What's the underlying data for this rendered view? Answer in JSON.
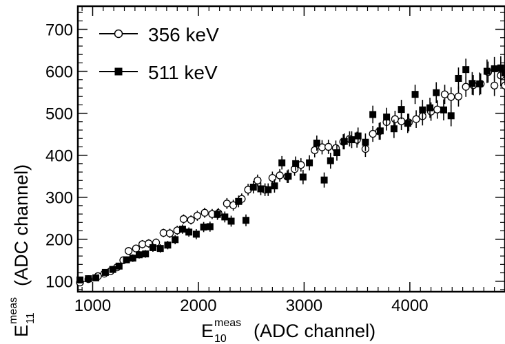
{
  "chart_data": {
    "type": "scatter",
    "xlabel": {
      "main": "E",
      "sup": "meas",
      "sub": "10",
      "rest": "(ADC channel)"
    },
    "ylabel": {
      "main": "E",
      "sup": "meas",
      "sub": "11",
      "rest": "(ADC channel)"
    },
    "xlim": [
      860,
      4900
    ],
    "ylim": [
      75,
      755
    ],
    "x_ticks": [
      1000,
      2000,
      3000,
      4000
    ],
    "x_tick_labels": [
      "1000",
      "2000",
      "3000",
      "4000"
    ],
    "y_ticks": [
      100,
      200,
      300,
      400,
      500,
      600,
      700
    ],
    "y_tick_labels": [
      "100",
      "200",
      "300",
      "400",
      "500",
      "600",
      "700"
    ],
    "grid": false,
    "legend_position": "top-left",
    "series": [
      {
        "name": "356 keV",
        "marker": "open-circle",
        "color": "#000000",
        "points": [
          [
            880,
            97,
            8
          ],
          [
            960,
            105,
            7
          ],
          [
            1050,
            112,
            8
          ],
          [
            1110,
            118,
            7
          ],
          [
            1170,
            124,
            8
          ],
          [
            1230,
            133,
            8
          ],
          [
            1290,
            150,
            8
          ],
          [
            1340,
            172,
            9
          ],
          [
            1410,
            178,
            9
          ],
          [
            1470,
            188,
            10
          ],
          [
            1530,
            190,
            10
          ],
          [
            1600,
            192,
            10
          ],
          [
            1670,
            215,
            10
          ],
          [
            1730,
            214,
            11
          ],
          [
            1800,
            221,
            11
          ],
          [
            1860,
            248,
            11
          ],
          [
            1930,
            246,
            11
          ],
          [
            1990,
            256,
            12
          ],
          [
            2060,
            263,
            12
          ],
          [
            2130,
            260,
            12
          ],
          [
            2190,
            262,
            12
          ],
          [
            2270,
            285,
            13
          ],
          [
            2330,
            281,
            13
          ],
          [
            2410,
            296,
            13
          ],
          [
            2470,
            318,
            14
          ],
          [
            2560,
            340,
            14
          ],
          [
            2630,
            318,
            15
          ],
          [
            2700,
            346,
            15
          ],
          [
            2770,
            352,
            15
          ],
          [
            2840,
            349,
            15
          ],
          [
            2910,
            367,
            16
          ],
          [
            2970,
            377,
            16
          ],
          [
            3100,
            412,
            17
          ],
          [
            3170,
            419,
            17
          ],
          [
            3230,
            420,
            17
          ],
          [
            3300,
            417,
            18
          ],
          [
            3370,
            432,
            18
          ],
          [
            3430,
            439,
            18
          ],
          [
            3500,
            437,
            19
          ],
          [
            3580,
            415,
            19
          ],
          [
            3650,
            451,
            19
          ],
          [
            3710,
            457,
            20
          ],
          [
            3780,
            479,
            20
          ],
          [
            3860,
            486,
            20
          ],
          [
            3920,
            481,
            21
          ],
          [
            3990,
            478,
            21
          ],
          [
            4060,
            486,
            21
          ],
          [
            4120,
            493,
            22
          ],
          [
            4200,
            504,
            22
          ],
          [
            4260,
            509,
            22
          ],
          [
            4330,
            545,
            23
          ],
          [
            4390,
            539,
            23
          ],
          [
            4460,
            540,
            24
          ],
          [
            4530,
            563,
            24
          ],
          [
            4600,
            567,
            24
          ],
          [
            4670,
            570,
            25
          ],
          [
            4740,
            598,
            25
          ],
          [
            4800,
            566,
            25
          ],
          [
            4860,
            590,
            26
          ],
          [
            4900,
            566,
            26
          ]
        ]
      },
      {
        "name": "511 keV",
        "marker": "filled-square",
        "color": "#000000",
        "points": [
          [
            880,
            103,
            7
          ],
          [
            960,
            106,
            7
          ],
          [
            1030,
            108,
            7
          ],
          [
            1120,
            121,
            7
          ],
          [
            1190,
            128,
            8
          ],
          [
            1250,
            136,
            8
          ],
          [
            1320,
            151,
            8
          ],
          [
            1380,
            155,
            9
          ],
          [
            1440,
            163,
            9
          ],
          [
            1500,
            165,
            9
          ],
          [
            1570,
            180,
            10
          ],
          [
            1640,
            178,
            10
          ],
          [
            1710,
            186,
            10
          ],
          [
            1780,
            199,
            11
          ],
          [
            1850,
            224,
            11
          ],
          [
            1910,
            217,
            11
          ],
          [
            1980,
            212,
            12
          ],
          [
            2050,
            229,
            12
          ],
          [
            2110,
            230,
            12
          ],
          [
            2180,
            259,
            13
          ],
          [
            2250,
            253,
            13
          ],
          [
            2310,
            243,
            13
          ],
          [
            2380,
            290,
            14
          ],
          [
            2450,
            245,
            14
          ],
          [
            2520,
            324,
            15
          ],
          [
            2590,
            320,
            15
          ],
          [
            2660,
            318,
            15
          ],
          [
            2720,
            327,
            16
          ],
          [
            2790,
            382,
            16
          ],
          [
            2850,
            350,
            16
          ],
          [
            2920,
            380,
            17
          ],
          [
            2990,
            348,
            17
          ],
          [
            3050,
            382,
            18
          ],
          [
            3120,
            429,
            18
          ],
          [
            3190,
            341,
            18
          ],
          [
            3250,
            387,
            19
          ],
          [
            3310,
            406,
            19
          ],
          [
            3380,
            433,
            19
          ],
          [
            3450,
            437,
            20
          ],
          [
            3510,
            446,
            20
          ],
          [
            3580,
            431,
            21
          ],
          [
            3650,
            497,
            21
          ],
          [
            3720,
            458,
            21
          ],
          [
            3780,
            491,
            22
          ],
          [
            3850,
            463,
            22
          ],
          [
            3920,
            509,
            23
          ],
          [
            3980,
            476,
            23
          ],
          [
            4050,
            545,
            23
          ],
          [
            4120,
            508,
            24
          ],
          [
            4190,
            513,
            24
          ],
          [
            4250,
            549,
            25
          ],
          [
            4320,
            508,
            25
          ],
          [
            4390,
            494,
            25
          ],
          [
            4460,
            583,
            26
          ],
          [
            4530,
            604,
            26
          ],
          [
            4590,
            571,
            27
          ],
          [
            4660,
            570,
            27
          ],
          [
            4730,
            600,
            28
          ],
          [
            4800,
            606,
            28
          ],
          [
            4860,
            608,
            28
          ],
          [
            4900,
            596,
            29
          ]
        ]
      }
    ]
  }
}
